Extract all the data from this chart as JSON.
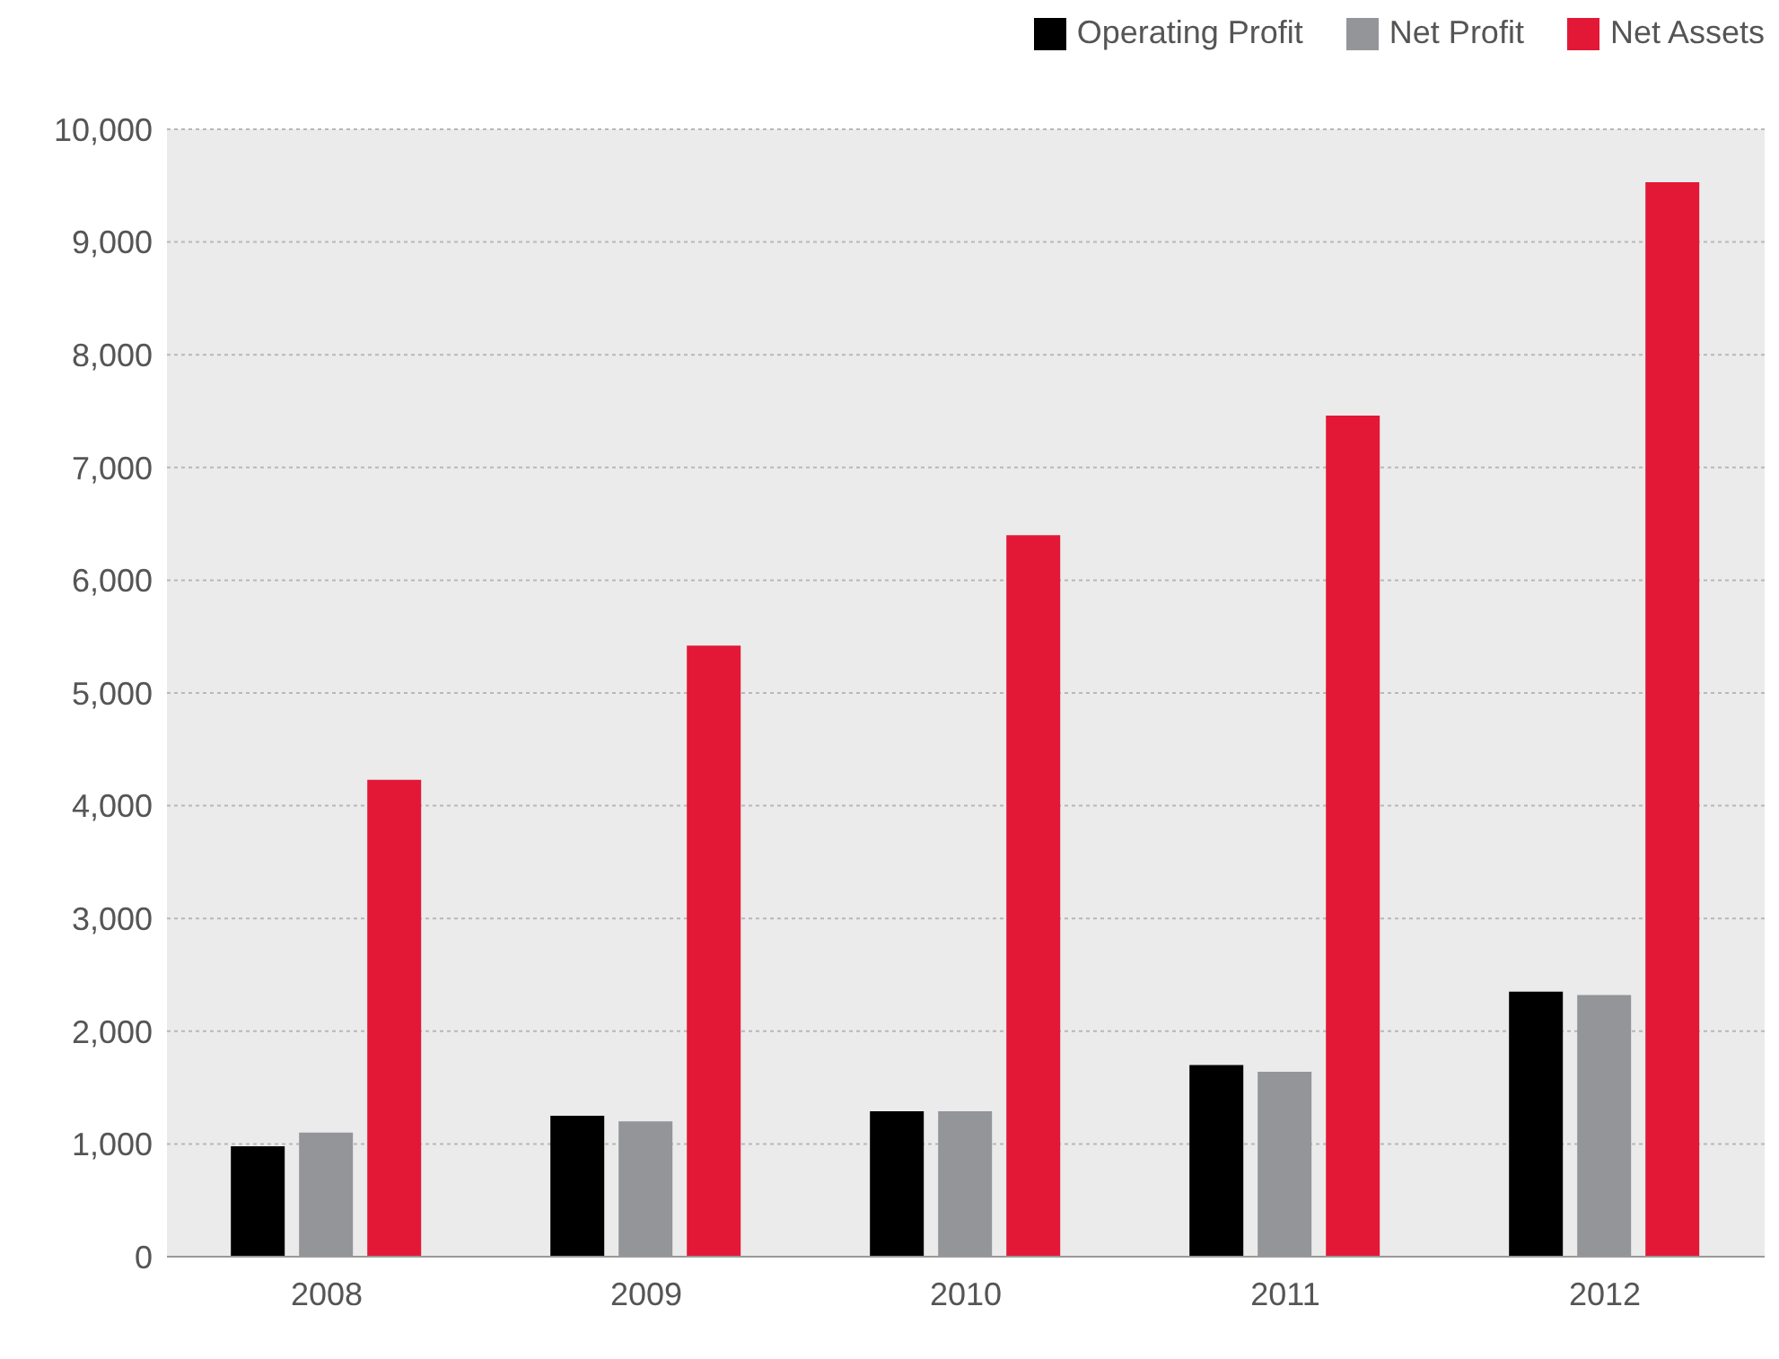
{
  "chart_data": {
    "type": "bar",
    "categories": [
      "2008",
      "2009",
      "2010",
      "2011",
      "2012"
    ],
    "series": [
      {
        "name": "Operating Profit",
        "color": "#000000",
        "values": [
          980,
          1250,
          1290,
          1700,
          2350
        ]
      },
      {
        "name": "Net Profit",
        "color": "#939598",
        "values": [
          1100,
          1200,
          1290,
          1640,
          2320
        ]
      },
      {
        "name": "Net Assets",
        "color": "#e31837",
        "values": [
          4230,
          5420,
          6400,
          7460,
          9530
        ]
      }
    ],
    "ylim": [
      0,
      10000
    ],
    "yticks": [
      0,
      {
        "value": 1000,
        "label": "1,000"
      },
      {
        "value": 2000,
        "label": "2,000"
      },
      {
        "value": 3000,
        "label": "3,000"
      },
      {
        "value": 4000,
        "label": "4,000"
      },
      {
        "value": 5000,
        "label": "5,000"
      },
      {
        "value": 6000,
        "label": "6,000"
      },
      {
        "value": 7000,
        "label": "7,000"
      },
      {
        "value": 8000,
        "label": "8,000"
      },
      {
        "value": 9000,
        "label": "9,000"
      },
      {
        "value": 10000,
        "label": "10,000"
      }
    ],
    "grid": "y",
    "legend": "top right"
  }
}
